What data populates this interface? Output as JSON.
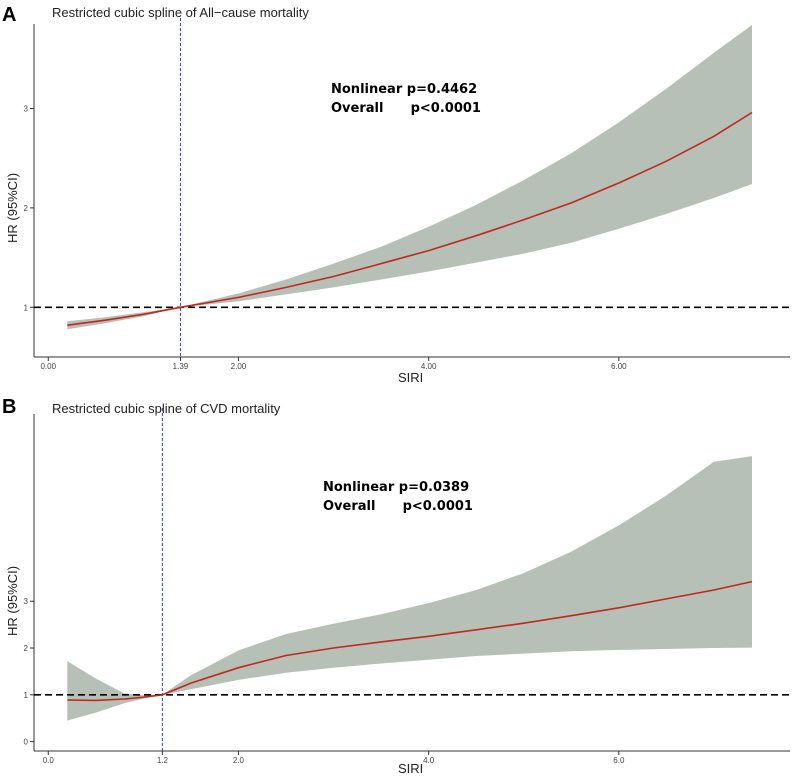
{
  "colors": {
    "band": "#b7c0b6",
    "line": "#c0281e",
    "ref": "#000000",
    "cut": "#3b3bc8"
  },
  "chart_data": [
    {
      "type": "line",
      "panel": "A",
      "title": "Restricted cubic spline of All−cause mortality",
      "xlabel": "SIRI",
      "ylabel": "HR (95%CI)",
      "xlim": [
        -0.15,
        7.8
      ],
      "ylim": [
        0.5,
        3.85
      ],
      "xticks": [
        0,
        1.39,
        2,
        4,
        6
      ],
      "xtick_labels": [
        "0.00",
        "1.39",
        "2.00",
        "4.00",
        "6.00"
      ],
      "yticks": [
        1,
        2,
        3
      ],
      "ytick_labels": [
        "1",
        "2",
        "3"
      ],
      "reference_hr": 1,
      "cutpoint": 1.39,
      "stats": [
        "Nonlinear p=0.4462",
        "Overall      p<0.0001"
      ],
      "x": [
        0.2,
        0.6,
        1.0,
        1.39,
        2.0,
        2.5,
        3.0,
        3.5,
        4.0,
        4.5,
        5.0,
        5.5,
        6.0,
        6.5,
        7.0,
        7.4
      ],
      "hr": [
        0.82,
        0.87,
        0.93,
        1.0,
        1.1,
        1.2,
        1.31,
        1.44,
        1.57,
        1.72,
        1.88,
        2.05,
        2.25,
        2.47,
        2.72,
        2.96
      ],
      "lower": [
        0.78,
        0.84,
        0.91,
        1.0,
        1.06,
        1.13,
        1.2,
        1.28,
        1.36,
        1.45,
        1.54,
        1.65,
        1.79,
        1.94,
        2.1,
        2.24
      ],
      "upper": [
        0.86,
        0.9,
        0.95,
        1.0,
        1.14,
        1.28,
        1.44,
        1.61,
        1.81,
        2.03,
        2.28,
        2.55,
        2.86,
        3.2,
        3.56,
        3.84
      ]
    },
    {
      "type": "line",
      "panel": "B",
      "title": "Restricted cubic spline of CVD mortality",
      "xlabel": "SIRI",
      "ylabel": "HR (95%CI)",
      "xlim": [
        -0.15,
        7.8
      ],
      "ylim": [
        -0.2,
        7.0
      ],
      "xticks": [
        0,
        1.2,
        2,
        4,
        6
      ],
      "xtick_labels": [
        "0.0",
        "1.2",
        "2.0",
        "4.0",
        "6.0"
      ],
      "yticks": [
        0,
        1,
        2,
        3
      ],
      "ytick_labels": [
        "0",
        "1",
        "2",
        "3"
      ],
      "reference_hr": 1,
      "cutpoint": 1.2,
      "stats": [
        "Nonlinear p=0.0389",
        "Overall      p<0.0001"
      ],
      "x": [
        0.2,
        0.5,
        0.8,
        1.0,
        1.2,
        1.5,
        2.0,
        2.5,
        3.0,
        3.5,
        4.0,
        4.5,
        5.0,
        5.5,
        6.0,
        6.5,
        7.0,
        7.4
      ],
      "hr": [
        0.89,
        0.88,
        0.91,
        0.95,
        1.0,
        1.25,
        1.58,
        1.84,
        2.0,
        2.13,
        2.25,
        2.39,
        2.53,
        2.69,
        2.86,
        3.05,
        3.24,
        3.42
      ],
      "lower": [
        0.45,
        0.62,
        0.82,
        0.92,
        1.0,
        1.12,
        1.32,
        1.47,
        1.58,
        1.67,
        1.75,
        1.83,
        1.88,
        1.93,
        1.96,
        1.98,
        2.0,
        2.01
      ],
      "upper": [
        1.72,
        1.35,
        1.03,
        0.99,
        1.0,
        1.42,
        1.95,
        2.3,
        2.52,
        2.72,
        2.96,
        3.24,
        3.6,
        4.06,
        4.62,
        5.26,
        5.98,
        6.1
      ]
    }
  ]
}
